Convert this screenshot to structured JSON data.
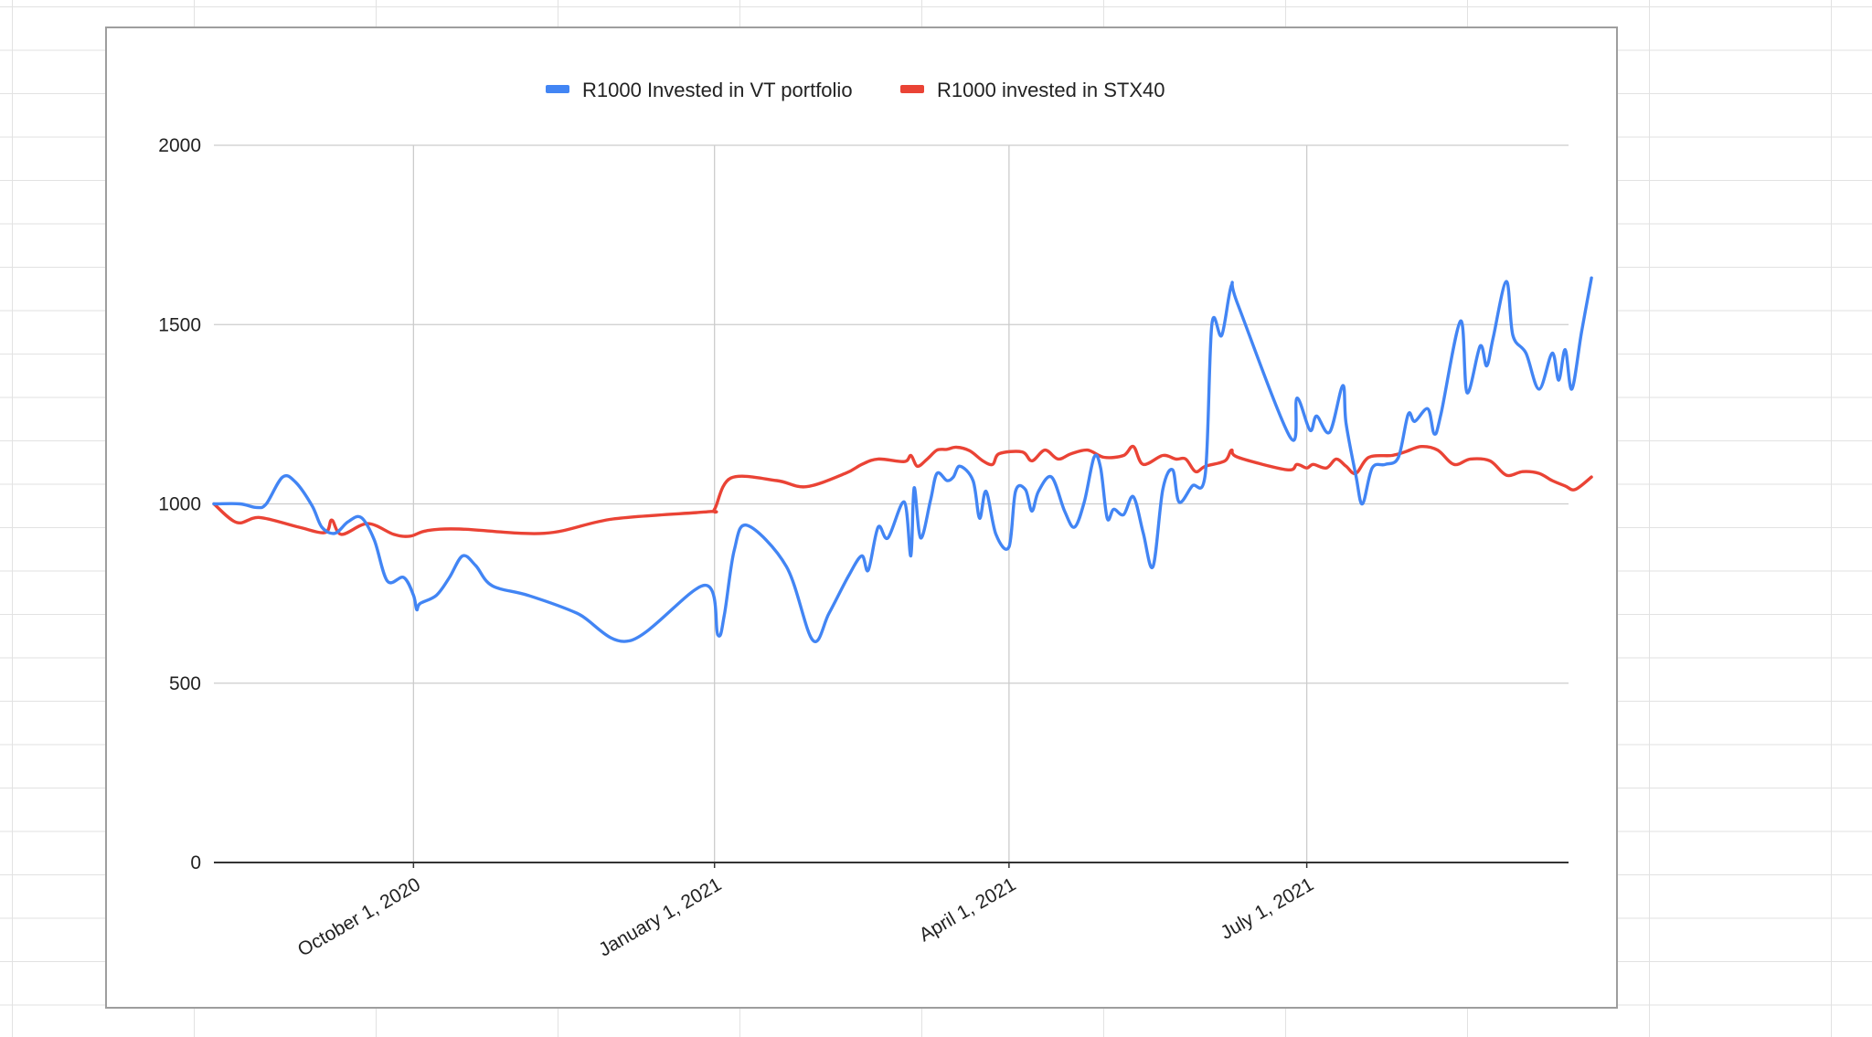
{
  "chart_data": {
    "type": "line",
    "title": "",
    "xlabel": "",
    "ylabel": "",
    "ylim": [
      0,
      2000
    ],
    "xlim": [
      "2020-08-01",
      "2021-09-19"
    ],
    "yticks": [
      "0",
      "500",
      "1000",
      "1500",
      "2000"
    ],
    "xticks": [
      {
        "date": "2020-10-01",
        "label": "October 1, 2020"
      },
      {
        "date": "2021-01-01",
        "label": "January 1, 2021"
      },
      {
        "date": "2021-04-01",
        "label": "April 1, 2021"
      },
      {
        "date": "2021-07-01",
        "label": "July 1, 2021"
      }
    ],
    "grid": true,
    "legend_position": "top",
    "series": [
      {
        "name": "R1000 Invested in VT portfolio",
        "color": "#4285f4",
        "points": [
          [
            "2020-08-01",
            1000
          ],
          [
            "2020-08-09",
            1000
          ],
          [
            "2020-08-14",
            990
          ],
          [
            "2020-08-17",
            1000
          ],
          [
            "2020-08-22",
            1075
          ],
          [
            "2020-08-26",
            1060
          ],
          [
            "2020-08-31",
            995
          ],
          [
            "2020-09-03",
            935
          ],
          [
            "2020-09-07",
            918
          ],
          [
            "2020-09-11",
            950
          ],
          [
            "2020-09-15",
            962
          ],
          [
            "2020-09-19",
            900
          ],
          [
            "2020-09-23",
            785
          ],
          [
            "2020-09-28",
            795
          ],
          [
            "2020-10-01",
            745
          ],
          [
            "2020-10-02",
            705
          ],
          [
            "2020-10-03",
            722
          ],
          [
            "2020-10-08",
            745
          ],
          [
            "2020-10-12",
            795
          ],
          [
            "2020-10-16",
            855
          ],
          [
            "2020-10-20",
            828
          ],
          [
            "2020-10-25",
            772
          ],
          [
            "2020-11-05",
            745
          ],
          [
            "2020-11-20",
            695
          ],
          [
            "2020-12-06",
            618
          ],
          [
            "2020-12-29",
            773
          ],
          [
            "2021-01-02",
            635
          ],
          [
            "2021-01-04",
            690
          ],
          [
            "2021-01-07",
            870
          ],
          [
            "2021-01-11",
            940
          ],
          [
            "2021-01-23",
            825
          ],
          [
            "2021-01-31",
            620
          ],
          [
            "2021-02-05",
            695
          ],
          [
            "2021-02-11",
            800
          ],
          [
            "2021-02-15",
            855
          ],
          [
            "2021-02-17",
            815
          ],
          [
            "2021-02-20",
            935
          ],
          [
            "2021-02-23",
            905
          ],
          [
            "2021-02-28",
            1005
          ],
          [
            "2021-03-02",
            855
          ],
          [
            "2021-03-03",
            1045
          ],
          [
            "2021-03-05",
            905
          ],
          [
            "2021-03-08",
            1010
          ],
          [
            "2021-03-10",
            1085
          ],
          [
            "2021-03-13",
            1065
          ],
          [
            "2021-03-15",
            1075
          ],
          [
            "2021-03-17",
            1105
          ],
          [
            "2021-03-21",
            1065
          ],
          [
            "2021-03-23",
            960
          ],
          [
            "2021-03-25",
            1035
          ],
          [
            "2021-03-28",
            915
          ],
          [
            "2021-04-01",
            880
          ],
          [
            "2021-04-03",
            1035
          ],
          [
            "2021-04-06",
            1040
          ],
          [
            "2021-04-08",
            980
          ],
          [
            "2021-04-10",
            1035
          ],
          [
            "2021-04-14",
            1075
          ],
          [
            "2021-04-18",
            980
          ],
          [
            "2021-04-21",
            935
          ],
          [
            "2021-04-24",
            1005
          ],
          [
            "2021-04-27",
            1130
          ],
          [
            "2021-04-29",
            1100
          ],
          [
            "2021-05-01",
            960
          ],
          [
            "2021-05-03",
            985
          ],
          [
            "2021-05-06",
            970
          ],
          [
            "2021-05-09",
            1020
          ],
          [
            "2021-05-12",
            920
          ],
          [
            "2021-05-15",
            825
          ],
          [
            "2021-05-18",
            1040
          ],
          [
            "2021-05-21",
            1095
          ],
          [
            "2021-05-23",
            1005
          ],
          [
            "2021-05-27",
            1050
          ],
          [
            "2021-05-31",
            1085
          ],
          [
            "2021-06-02",
            1500
          ],
          [
            "2021-06-05",
            1470
          ],
          [
            "2021-06-08",
            1610
          ],
          [
            "2021-06-10",
            1555
          ],
          [
            "2021-06-26",
            1185
          ],
          [
            "2021-06-28",
            1295
          ],
          [
            "2021-07-02",
            1205
          ],
          [
            "2021-07-04",
            1245
          ],
          [
            "2021-07-08",
            1200
          ],
          [
            "2021-07-12",
            1330
          ],
          [
            "2021-07-13",
            1225
          ],
          [
            "2021-07-16",
            1080
          ],
          [
            "2021-07-18",
            1000
          ],
          [
            "2021-07-21",
            1100
          ],
          [
            "2021-07-25",
            1110
          ],
          [
            "2021-07-29",
            1130
          ],
          [
            "2021-08-01",
            1250
          ],
          [
            "2021-08-03",
            1230
          ],
          [
            "2021-08-07",
            1265
          ],
          [
            "2021-08-09",
            1195
          ],
          [
            "2021-08-11",
            1250
          ],
          [
            "2021-08-17",
            1510
          ],
          [
            "2021-08-19",
            1310
          ],
          [
            "2021-08-23",
            1440
          ],
          [
            "2021-08-25",
            1385
          ],
          [
            "2021-08-27",
            1465
          ],
          [
            "2021-08-31",
            1620
          ],
          [
            "2021-09-02",
            1470
          ],
          [
            "2021-09-06",
            1420
          ],
          [
            "2021-09-10",
            1320
          ],
          [
            "2021-09-14",
            1420
          ],
          [
            "2021-09-16",
            1345
          ],
          [
            "2021-09-18",
            1430
          ],
          [
            "2021-09-20",
            1320
          ],
          [
            "2021-09-23",
            1480
          ],
          [
            "2021-09-26",
            1630
          ]
        ]
      },
      {
        "name": "R1000 invested in STX40",
        "color": "#ea4335",
        "points": [
          [
            "2020-08-01",
            1000
          ],
          [
            "2020-08-08",
            948
          ],
          [
            "2020-08-15",
            962
          ],
          [
            "2020-08-27",
            935
          ],
          [
            "2020-09-04",
            920
          ],
          [
            "2020-09-06",
            955
          ],
          [
            "2020-09-09",
            915
          ],
          [
            "2020-09-17",
            945
          ],
          [
            "2020-09-25",
            915
          ],
          [
            "2020-09-30",
            910
          ],
          [
            "2020-10-05",
            925
          ],
          [
            "2020-10-15",
            930
          ],
          [
            "2020-11-10",
            918
          ],
          [
            "2020-12-01",
            958
          ],
          [
            "2020-12-30",
            978
          ],
          [
            "2021-01-01",
            985
          ],
          [
            "2021-01-06",
            1072
          ],
          [
            "2021-01-20",
            1065
          ],
          [
            "2021-01-29",
            1048
          ],
          [
            "2021-02-10",
            1085
          ],
          [
            "2021-02-15",
            1110
          ],
          [
            "2021-02-20",
            1125
          ],
          [
            "2021-02-28",
            1118
          ],
          [
            "2021-03-02",
            1135
          ],
          [
            "2021-03-04",
            1105
          ],
          [
            "2021-03-07",
            1125
          ],
          [
            "2021-03-10",
            1150
          ],
          [
            "2021-03-13",
            1152
          ],
          [
            "2021-03-16",
            1158
          ],
          [
            "2021-03-20",
            1148
          ],
          [
            "2021-03-24",
            1120
          ],
          [
            "2021-03-27",
            1110
          ],
          [
            "2021-03-29",
            1140
          ],
          [
            "2021-04-05",
            1145
          ],
          [
            "2021-04-08",
            1120
          ],
          [
            "2021-04-12",
            1150
          ],
          [
            "2021-04-16",
            1125
          ],
          [
            "2021-04-20",
            1140
          ],
          [
            "2021-04-25",
            1150
          ],
          [
            "2021-04-30",
            1130
          ],
          [
            "2021-05-06",
            1135
          ],
          [
            "2021-05-09",
            1160
          ],
          [
            "2021-05-12",
            1110
          ],
          [
            "2021-05-18",
            1135
          ],
          [
            "2021-05-22",
            1125
          ],
          [
            "2021-05-25",
            1125
          ],
          [
            "2021-05-28",
            1090
          ],
          [
            "2021-05-31",
            1105
          ],
          [
            "2021-06-06",
            1120
          ],
          [
            "2021-06-08",
            1150
          ],
          [
            "2021-06-10",
            1130
          ],
          [
            "2021-06-25",
            1095
          ],
          [
            "2021-06-28",
            1110
          ],
          [
            "2021-07-01",
            1100
          ],
          [
            "2021-07-03",
            1110
          ],
          [
            "2021-07-07",
            1100
          ],
          [
            "2021-07-10",
            1125
          ],
          [
            "2021-07-13",
            1105
          ],
          [
            "2021-07-16",
            1085
          ],
          [
            "2021-07-20",
            1130
          ],
          [
            "2021-07-27",
            1135
          ],
          [
            "2021-07-31",
            1145
          ],
          [
            "2021-08-05",
            1160
          ],
          [
            "2021-08-10",
            1150
          ],
          [
            "2021-08-15",
            1110
          ],
          [
            "2021-08-20",
            1125
          ],
          [
            "2021-08-26",
            1120
          ],
          [
            "2021-08-31",
            1080
          ],
          [
            "2021-09-05",
            1090
          ],
          [
            "2021-09-10",
            1085
          ],
          [
            "2021-09-14",
            1065
          ],
          [
            "2021-09-18",
            1050
          ],
          [
            "2021-09-21",
            1040
          ],
          [
            "2021-09-26",
            1075
          ]
        ]
      }
    ]
  }
}
